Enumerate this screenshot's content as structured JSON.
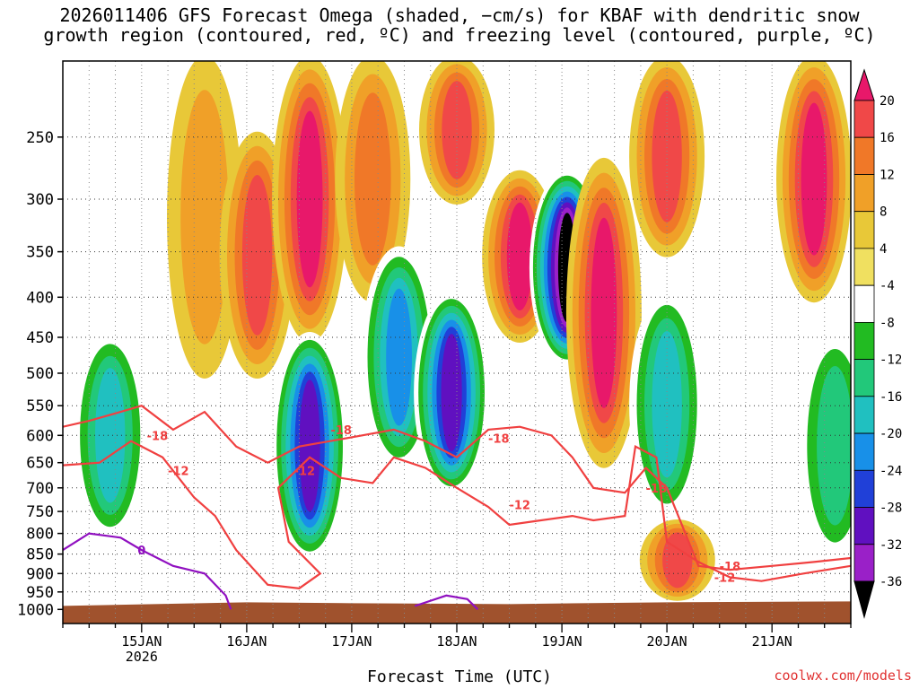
{
  "chart_data": {
    "type": "heatmap",
    "title_line1": "2026011406 GFS Forecast Omega (shaded, −cm/s) for KBAF with dendritic snow",
    "title_line2": "growth region (contoured, red, ºC) and freezing level (contoured, purple, ºC)",
    "xlabel": "Forecast Time (UTC)",
    "ylabel": "",
    "credit": "coolwx.com/models",
    "x_ticks": [
      {
        "label": "15JAN",
        "sublabel": "2026",
        "day": 1
      },
      {
        "label": "16JAN",
        "sublabel": "",
        "day": 2
      },
      {
        "label": "17JAN",
        "sublabel": "",
        "day": 3
      },
      {
        "label": "18JAN",
        "sublabel": "",
        "day": 4
      },
      {
        "label": "19JAN",
        "sublabel": "",
        "day": 5
      },
      {
        "label": "20JAN",
        "sublabel": "",
        "day": 6
      },
      {
        "label": "21JAN",
        "sublabel": "",
        "day": 7
      }
    ],
    "x_range_days": [
      0.25,
      7.75
    ],
    "y_ticks": [
      250,
      300,
      350,
      400,
      450,
      500,
      550,
      600,
      650,
      700,
      750,
      800,
      850,
      900,
      950,
      1000
    ],
    "y_range_hpa": [
      200,
      1000
    ],
    "colorbar": {
      "levels": [
        20,
        16,
        12,
        8,
        4,
        -4,
        -8,
        -12,
        -16,
        -20,
        -24,
        -28,
        -32,
        -36
      ],
      "colors": [
        "#e8186a",
        "#f04848",
        "#f07828",
        "#f0a028",
        "#e8c838",
        "#f0e060",
        "#ffffff",
        "#22bb22",
        "#22c87a",
        "#20c0c0",
        "#1890e8",
        "#2040d8",
        "#6010c0",
        "#9a20c8",
        "#a8a8a8",
        "#000000"
      ]
    },
    "contours": [
      {
        "name": "dendritic -12C",
        "color": "#f04040",
        "label": "-12"
      },
      {
        "name": "dendritic -18C",
        "color": "#f04040",
        "label": "-18"
      },
      {
        "name": "freezing level 0C",
        "color": "#9010c0",
        "label": "0"
      }
    ],
    "omega_features": [
      {
        "time_day": 0.7,
        "p_top": 450,
        "p_bot": 800,
        "omega": -16
      },
      {
        "time_day": 1.6,
        "p_top": 200,
        "p_bot": 500,
        "omega": 8
      },
      {
        "time_day": 2.1,
        "p_top": 250,
        "p_bot": 500,
        "omega": 16
      },
      {
        "time_day": 2.6,
        "p_top": 200,
        "p_bot": 450,
        "omega": 20
      },
      {
        "time_day": 2.6,
        "p_top": 450,
        "p_bot": 850,
        "omega": -28
      },
      {
        "time_day": 3.2,
        "p_top": 200,
        "p_bot": 400,
        "omega": 12
      },
      {
        "time_day": 3.45,
        "p_top": 350,
        "p_bot": 650,
        "omega": -20
      },
      {
        "time_day": 4.0,
        "p_top": 200,
        "p_bot": 300,
        "omega": 16
      },
      {
        "time_day": 3.95,
        "p_top": 400,
        "p_bot": 700,
        "omega": -28
      },
      {
        "time_day": 4.6,
        "p_top": 280,
        "p_bot": 450,
        "omega": 20
      },
      {
        "time_day": 5.05,
        "p_top": 280,
        "p_bot": 480,
        "omega": -36
      },
      {
        "time_day": 5.4,
        "p_top": 270,
        "p_bot": 650,
        "omega": 20
      },
      {
        "time_day": 6.0,
        "p_top": 200,
        "p_bot": 350,
        "omega": 16
      },
      {
        "time_day": 6.0,
        "p_top": 400,
        "p_bot": 750,
        "omega": -16
      },
      {
        "time_day": 7.4,
        "p_top": 200,
        "p_bot": 400,
        "omega": 20
      },
      {
        "time_day": 7.6,
        "p_top": 450,
        "p_bot": 850,
        "omega": -12
      },
      {
        "time_day": 6.1,
        "p_top": 780,
        "p_bot": 960,
        "omega": 16
      }
    ]
  }
}
